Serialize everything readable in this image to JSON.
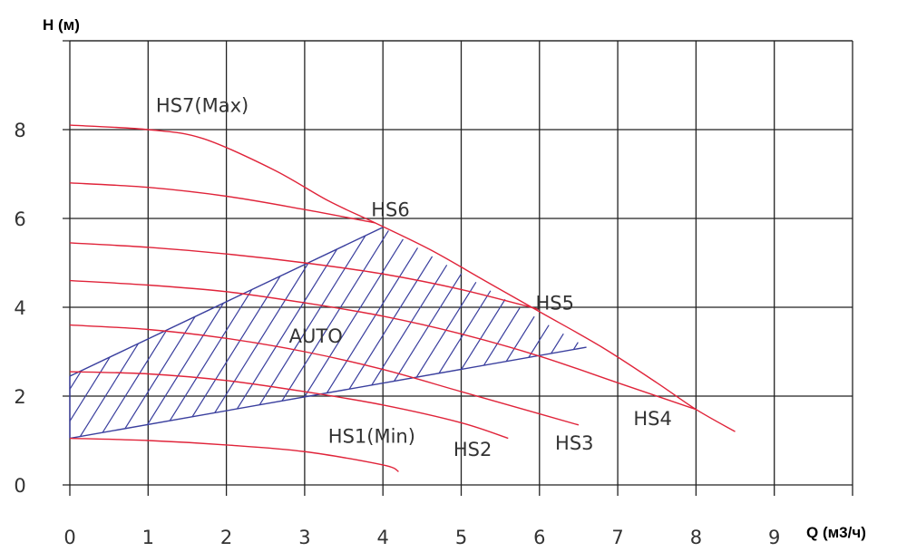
{
  "chart_data": {
    "type": "line",
    "title": "",
    "xlabel": "Q (м3/ч)",
    "ylabel": "H (м)",
    "xlim": [
      0,
      10
    ],
    "ylim": [
      0,
      10
    ],
    "x_ticks": [
      "0",
      "1",
      "2",
      "3",
      "4",
      "5",
      "6",
      "7",
      "8",
      "9"
    ],
    "y_ticks": [
      "0",
      "2",
      "4",
      "6",
      "8"
    ],
    "grid": true,
    "legend": "none",
    "colors": {
      "curves": "#e0243a",
      "auto_zone": "#3a3f9e",
      "grid": "#222222"
    },
    "series": [
      {
        "name": "HS7(Max)",
        "x": [
          0,
          1,
          1.7,
          2.6,
          3.3,
          3.9,
          4.6,
          5.3,
          6.0,
          6.8,
          7.5,
          8.0,
          8.5
        ],
        "y": [
          8.1,
          8.0,
          7.8,
          7.1,
          6.4,
          5.9,
          5.3,
          4.6,
          3.9,
          3.1,
          2.3,
          1.7,
          1.2
        ]
      },
      {
        "name": "HS6",
        "x": [
          0,
          1,
          2,
          3,
          3.9
        ],
        "y": [
          6.8,
          6.7,
          6.5,
          6.2,
          5.9
        ]
      },
      {
        "name": "HS5",
        "x": [
          0,
          1,
          2,
          3,
          4,
          5,
          6.0
        ],
        "y": [
          5.45,
          5.35,
          5.2,
          5.0,
          4.75,
          4.4,
          3.95
        ]
      },
      {
        "name": "HS4",
        "x": [
          0,
          1,
          2,
          3,
          4,
          5,
          6,
          7,
          8.0
        ],
        "y": [
          4.6,
          4.5,
          4.35,
          4.1,
          3.8,
          3.4,
          2.9,
          2.3,
          1.7
        ]
      },
      {
        "name": "HS3",
        "x": [
          0,
          1,
          2,
          3,
          4,
          5,
          6,
          6.5
        ],
        "y": [
          3.6,
          3.5,
          3.3,
          3.0,
          2.6,
          2.1,
          1.6,
          1.35
        ]
      },
      {
        "name": "HS2",
        "x": [
          0,
          1,
          2,
          3,
          4,
          5,
          5.6
        ],
        "y": [
          2.55,
          2.5,
          2.35,
          2.1,
          1.8,
          1.4,
          1.05
        ]
      },
      {
        "name": "HS1(Min)",
        "x": [
          0,
          1,
          2,
          3,
          4,
          4.2
        ],
        "y": [
          1.05,
          1.0,
          0.9,
          0.75,
          0.45,
          0.3
        ]
      }
    ],
    "auto_zone": {
      "label": "AUTO",
      "upper": {
        "x": [
          0,
          4.0
        ],
        "y": [
          2.45,
          5.8
        ]
      },
      "lower": {
        "x": [
          0,
          6.6
        ],
        "y": [
          1.05,
          3.1
        ]
      },
      "left": {
        "x": [
          0,
          0
        ],
        "y": [
          1.05,
          2.45
        ]
      }
    },
    "annotations": [
      {
        "text": "HS7(Max)",
        "x": 1.1,
        "y": 8.4
      },
      {
        "text": "HS6",
        "x": 3.85,
        "y": 6.05
      },
      {
        "text": "HS5",
        "x": 5.95,
        "y": 3.95
      },
      {
        "text": "HS4",
        "x": 7.2,
        "y": 1.35
      },
      {
        "text": "HS3",
        "x": 6.2,
        "y": 0.8
      },
      {
        "text": "HS2",
        "x": 4.9,
        "y": 0.65
      },
      {
        "text": "HS1(Min)",
        "x": 3.3,
        "y": 0.95
      },
      {
        "text": "AUTO",
        "x": 2.8,
        "y": 3.2
      }
    ]
  }
}
